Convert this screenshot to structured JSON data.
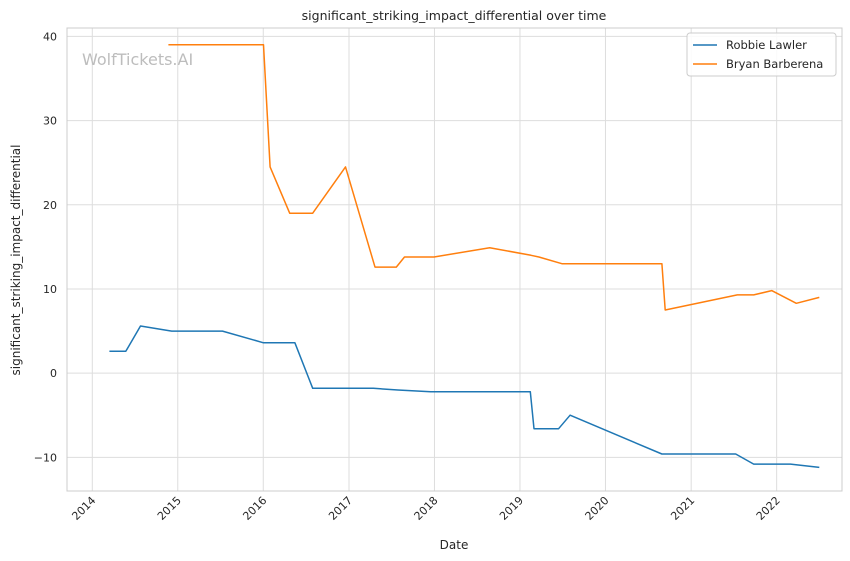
{
  "chart_data": {
    "type": "line",
    "title": "significant_striking_impact_differential over time",
    "xlabel": "Date",
    "ylabel": "significant_striking_impact_differential",
    "watermark": "WolfTickets.AI",
    "xlim": [
      "2013-09-15",
      "2022-10-07"
    ],
    "ylim": [
      -14,
      41
    ],
    "x_ticks": [
      "2014",
      "2015",
      "2016",
      "2017",
      "2018",
      "2019",
      "2020",
      "2021",
      "2022"
    ],
    "y_ticks": [
      -10,
      0,
      10,
      20,
      30,
      40
    ],
    "grid": true,
    "legend_position": "top-right",
    "series": [
      {
        "name": "Robbie Lawler",
        "color": "#1f77b4",
        "points": [
          [
            "2014-03-15",
            2.6
          ],
          [
            "2014-05-24",
            2.6
          ],
          [
            "2014-07-26",
            5.6
          ],
          [
            "2014-12-06",
            5.0
          ],
          [
            "2015-07-11",
            5.0
          ],
          [
            "2016-01-02",
            3.6
          ],
          [
            "2016-05-15",
            3.6
          ],
          [
            "2016-07-30",
            -1.8
          ],
          [
            "2017-04-15",
            -1.8
          ],
          [
            "2017-07-29",
            -2.0
          ],
          [
            "2017-12-16",
            -2.2
          ],
          [
            "2019-02-14",
            -2.2
          ],
          [
            "2019-03-02",
            -6.6
          ],
          [
            "2019-06-15",
            -6.6
          ],
          [
            "2019-08-03",
            -5.0
          ],
          [
            "2020-08-29",
            -9.6
          ],
          [
            "2021-07-10",
            -9.6
          ],
          [
            "2021-09-25",
            -10.8
          ],
          [
            "2022-03-01",
            -10.8
          ],
          [
            "2022-07-02",
            -11.2
          ]
        ]
      },
      {
        "name": "Bryan Barberena",
        "color": "#ff7f0e",
        "points": [
          [
            "2014-11-22",
            39.0
          ],
          [
            "2016-01-02",
            39.0
          ],
          [
            "2016-01-30",
            24.5
          ],
          [
            "2016-04-23",
            19.0
          ],
          [
            "2016-07-30",
            19.0
          ],
          [
            "2016-12-17",
            24.5
          ],
          [
            "2017-04-22",
            12.6
          ],
          [
            "2017-07-22",
            12.6
          ],
          [
            "2017-08-26",
            13.8
          ],
          [
            "2017-12-30",
            13.8
          ],
          [
            "2018-08-25",
            14.9
          ],
          [
            "2019-02-17",
            14.0
          ],
          [
            "2019-03-23",
            13.8
          ],
          [
            "2019-06-29",
            13.0
          ],
          [
            "2020-08-29",
            13.0
          ],
          [
            "2020-09-12",
            7.5
          ],
          [
            "2021-07-17",
            9.3
          ],
          [
            "2021-09-25",
            9.3
          ],
          [
            "2021-12-11",
            9.8
          ],
          [
            "2022-03-26",
            8.3
          ],
          [
            "2022-07-02",
            9.0
          ]
        ]
      }
    ]
  }
}
